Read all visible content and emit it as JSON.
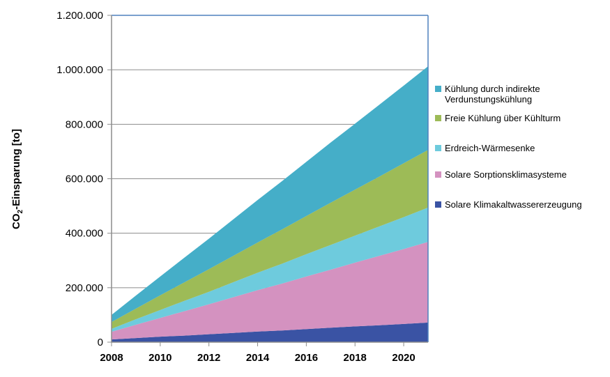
{
  "chart_data": {
    "type": "area",
    "stacked": true,
    "title": "",
    "xlabel": "",
    "ylabel": "CO2-Einsparung [to]",
    "ylabel_main": "CO",
    "ylabel_sub": "2",
    "ylabel_rest": "-Einsparung [to]",
    "x": [
      2008,
      2009,
      2010,
      2011,
      2012,
      2013,
      2014,
      2015,
      2016,
      2017,
      2018,
      2019,
      2020,
      2021
    ],
    "xlim": [
      2008,
      2021
    ],
    "ylim": [
      0,
      1200000
    ],
    "x_ticks": [
      "2008",
      "2010",
      "2012",
      "2014",
      "2016",
      "2018",
      "2020"
    ],
    "y_ticks": [
      "0",
      "200.000",
      "400.000",
      "600.000",
      "800.000",
      "1.000.000",
      "1.200.000"
    ],
    "grid": true,
    "legend_position": "right",
    "series": [
      {
        "name": "Solare Klimakaltwassererzeugung",
        "color": "#3A53A4",
        "values": [
          10000,
          15000,
          20000,
          24000,
          29000,
          34000,
          39000,
          43000,
          48000,
          53000,
          58000,
          62000,
          67000,
          72000
        ]
      },
      {
        "name": "Solare Sorptionsklimasysteme",
        "color": "#D492C0",
        "values": [
          28000,
          49000,
          69000,
          90000,
          110000,
          131000,
          152000,
          172000,
          193000,
          213000,
          234000,
          255000,
          275000,
          296000
        ]
      },
      {
        "name": "Erdreich-Wärmesenke",
        "color": "#6ECBDD",
        "values": [
          11000,
          20000,
          29000,
          38000,
          46000,
          55000,
          64000,
          73000,
          82000,
          91000,
          99000,
          108000,
          117000,
          126000
        ]
      },
      {
        "name": "Freie Kühlung über Kühlturm",
        "color": "#9DBB57",
        "values": [
          25000,
          39000,
          54000,
          68000,
          83000,
          97000,
          111000,
          126000,
          140000,
          155000,
          169000,
          183000,
          198000,
          212000
        ]
      },
      {
        "name": "Kühlung durch indirekte Verdunstungskühlung",
        "color": "#45AEC8",
        "values": [
          26000,
          48000,
          69000,
          91000,
          112000,
          134000,
          156000,
          177000,
          199000,
          221000,
          242000,
          264000,
          285000,
          307000
        ]
      }
    ]
  }
}
